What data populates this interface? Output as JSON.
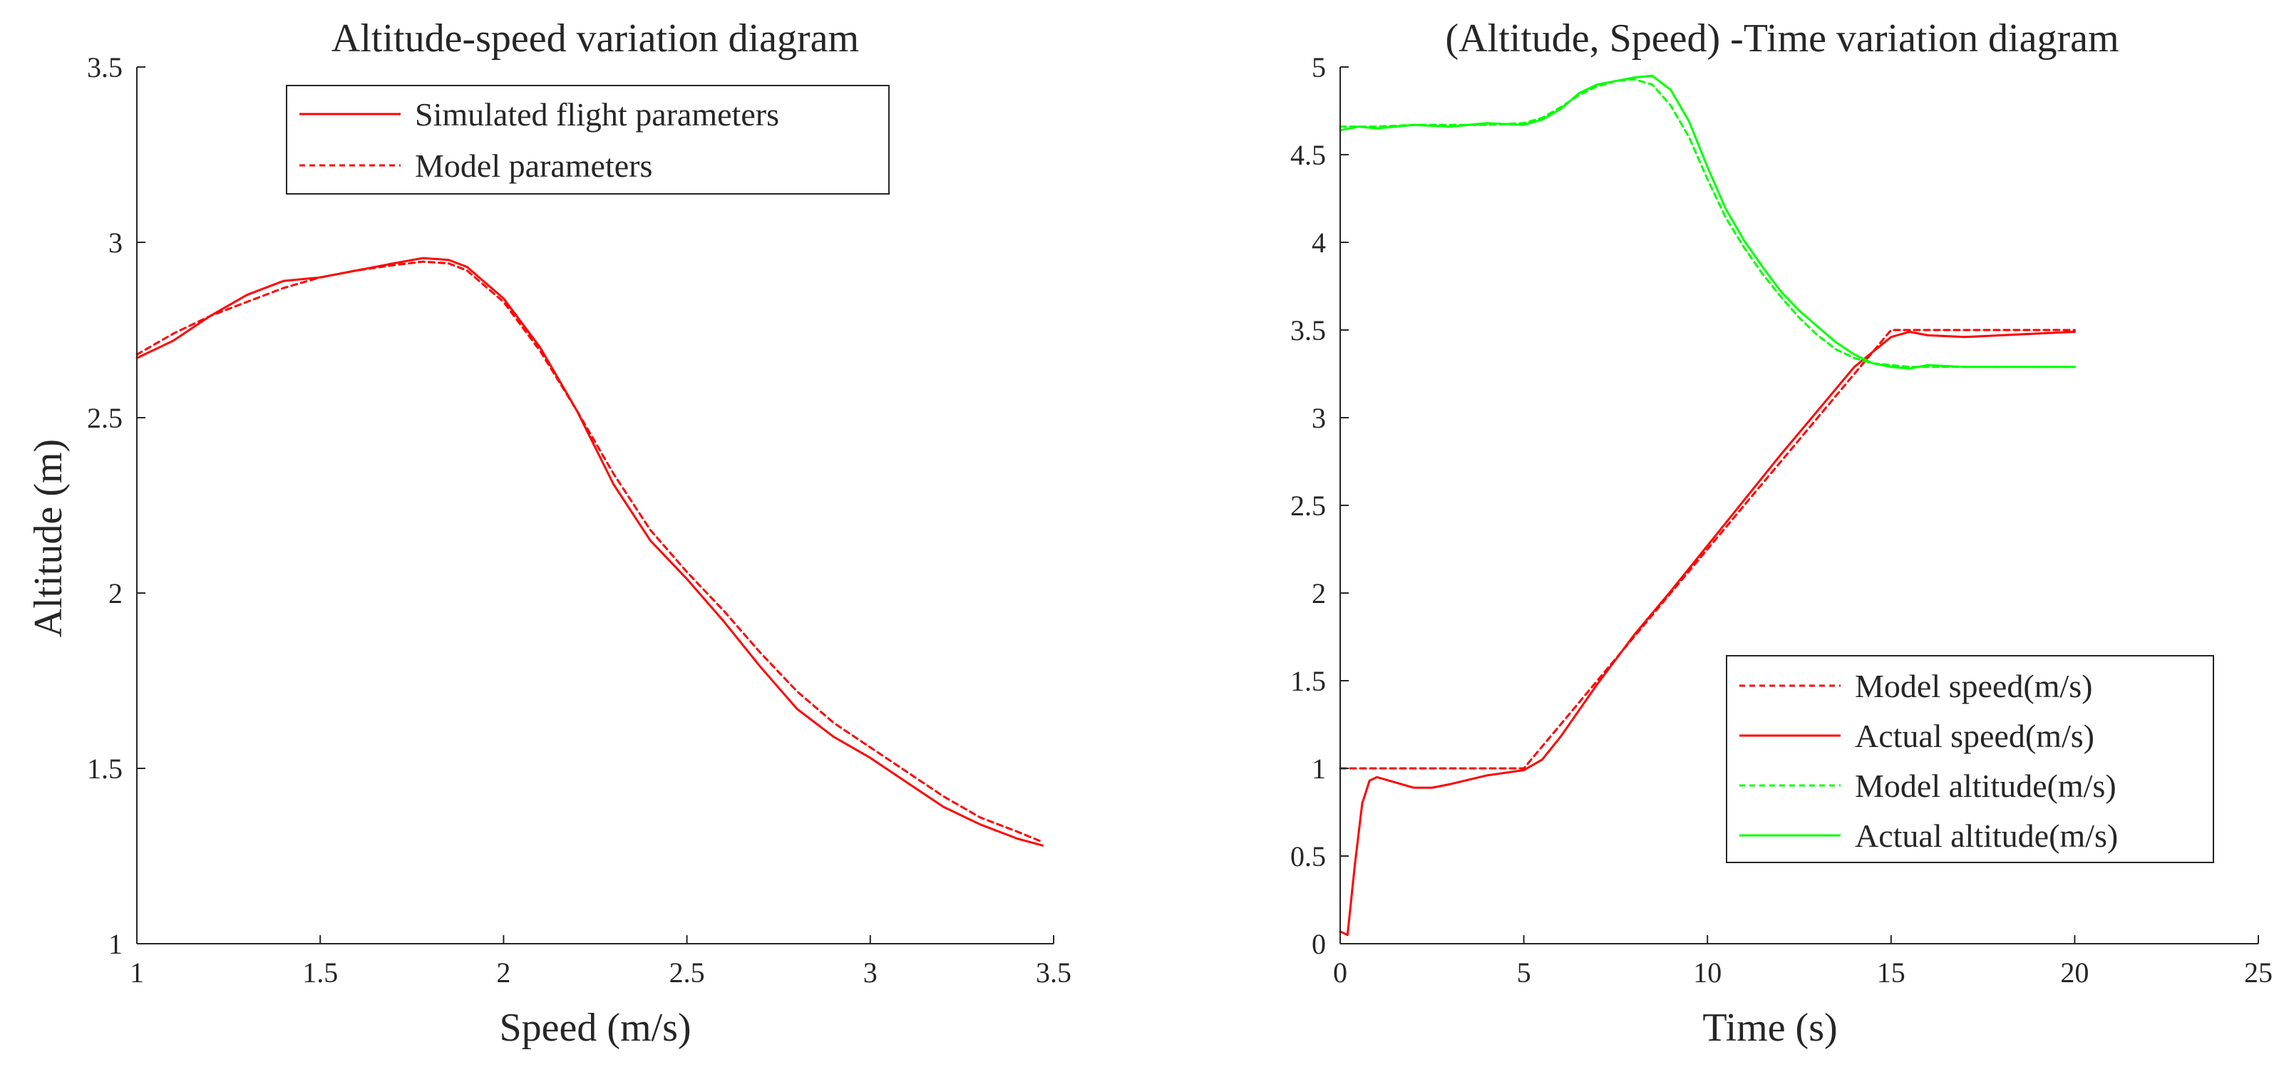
{
  "chart_data": [
    {
      "type": "line",
      "title": "Altitude-speed variation diagram",
      "xlabel": "Speed (m/s)",
      "ylabel": "Altitude (m)",
      "xlim": [
        1,
        3.5
      ],
      "ylim": [
        1,
        3.5
      ],
      "xticks": [
        1,
        1.5,
        2,
        2.5,
        3,
        3.5
      ],
      "xtick_labels": [
        "1",
        "1.5",
        "2",
        "2.5",
        "3",
        "3.5"
      ],
      "yticks": [
        1,
        1.5,
        2,
        2.5,
        3,
        3.5
      ],
      "ytick_labels": [
        "1",
        "1.5",
        "2",
        "2.5",
        "3",
        "3.5"
      ],
      "legend_position": "top-right",
      "series": [
        {
          "name": "Simulated flight parameters",
          "color": "#ff0000",
          "style": "solid",
          "x": [
            1.0,
            1.1,
            1.2,
            1.3,
            1.4,
            1.5,
            1.6,
            1.7,
            1.78,
            1.85,
            1.9,
            2.0,
            2.1,
            2.2,
            2.3,
            2.4,
            2.5,
            2.6,
            2.7,
            2.8,
            2.9,
            3.0,
            3.1,
            3.2,
            3.3,
            3.4,
            3.47
          ],
          "y": [
            2.67,
            2.72,
            2.79,
            2.85,
            2.89,
            2.9,
            2.92,
            2.94,
            2.955,
            2.95,
            2.93,
            2.84,
            2.7,
            2.52,
            2.31,
            2.15,
            2.04,
            1.92,
            1.79,
            1.67,
            1.59,
            1.53,
            1.46,
            1.39,
            1.34,
            1.3,
            1.28
          ]
        },
        {
          "name": "Model parameters",
          "color": "#ff0000",
          "style": "dashed",
          "x": [
            1.0,
            1.1,
            1.2,
            1.3,
            1.4,
            1.5,
            1.6,
            1.7,
            1.78,
            1.85,
            1.9,
            2.0,
            2.1,
            2.2,
            2.3,
            2.4,
            2.5,
            2.6,
            2.7,
            2.8,
            2.9,
            3.0,
            3.1,
            3.2,
            3.3,
            3.4,
            3.47
          ],
          "y": [
            2.68,
            2.74,
            2.79,
            2.83,
            2.87,
            2.9,
            2.92,
            2.935,
            2.945,
            2.94,
            2.92,
            2.83,
            2.69,
            2.52,
            2.34,
            2.18,
            2.06,
            1.95,
            1.83,
            1.72,
            1.63,
            1.56,
            1.49,
            1.42,
            1.36,
            1.32,
            1.29
          ]
        }
      ]
    },
    {
      "type": "line",
      "title": "(Altitude, Speed) -Time variation diagram",
      "xlabel": "Time (s)",
      "ylabel": "",
      "xlim": [
        0,
        25
      ],
      "ylim": [
        0,
        5
      ],
      "xticks": [
        0,
        5,
        10,
        15,
        20,
        25
      ],
      "xtick_labels": [
        "0",
        "5",
        "10",
        "15",
        "20",
        "25"
      ],
      "yticks": [
        0,
        0.5,
        1,
        1.5,
        2,
        2.5,
        3,
        3.5,
        4,
        4.5,
        5
      ],
      "ytick_labels": [
        "0",
        "0.5",
        "1",
        "1.5",
        "2",
        "2.5",
        "3",
        "3.5",
        "4",
        "4.5",
        "5"
      ],
      "legend_position": "bottom-right",
      "series": [
        {
          "name": "Model speed(m/s)",
          "color": "#ff0000",
          "style": "dashed",
          "x": [
            0,
            5,
            15,
            20
          ],
          "y": [
            1.0,
            1.0,
            3.5,
            3.5
          ]
        },
        {
          "name": "Actual speed(m/s)",
          "color": "#ff0000",
          "style": "solid",
          "x": [
            0,
            0.2,
            0.4,
            0.6,
            0.8,
            1.0,
            1.5,
            2.0,
            2.5,
            3.0,
            4.0,
            5.0,
            5.5,
            6.0,
            7.0,
            8.0,
            9.0,
            10.0,
            11.0,
            12.0,
            13.0,
            14.0,
            15.0,
            15.5,
            16.0,
            17.0,
            18.0,
            19.0,
            20.0
          ],
          "y": [
            0.07,
            0.05,
            0.45,
            0.8,
            0.93,
            0.95,
            0.92,
            0.89,
            0.89,
            0.91,
            0.96,
            0.99,
            1.05,
            1.18,
            1.48,
            1.76,
            2.01,
            2.27,
            2.53,
            2.79,
            3.04,
            3.29,
            3.46,
            3.49,
            3.47,
            3.46,
            3.47,
            3.48,
            3.49
          ]
        },
        {
          "name": "Model altitude(m/s)",
          "color": "#00ff00",
          "style": "dashed",
          "x": [
            0,
            1,
            2,
            3,
            4,
            5,
            5.5,
            6,
            6.5,
            7,
            7.5,
            8,
            8.5,
            9,
            9.5,
            10,
            10.5,
            11,
            11.5,
            12,
            12.5,
            13,
            13.5,
            14,
            14.5,
            15,
            15.5,
            16,
            17,
            18,
            19,
            20
          ],
          "y": [
            4.66,
            4.66,
            4.67,
            4.67,
            4.67,
            4.68,
            4.71,
            4.77,
            4.84,
            4.89,
            4.92,
            4.93,
            4.9,
            4.78,
            4.6,
            4.36,
            4.14,
            3.97,
            3.82,
            3.69,
            3.57,
            3.47,
            3.39,
            3.34,
            3.31,
            3.3,
            3.29,
            3.29,
            3.29,
            3.29,
            3.29,
            3.29
          ]
        },
        {
          "name": "Actual altitude(m/s)",
          "color": "#00ff00",
          "style": "solid",
          "x": [
            0,
            0.5,
            1,
            2,
            3,
            4,
            5,
            5.5,
            6,
            6.5,
            7,
            7.5,
            8,
            8.5,
            9,
            9.5,
            10,
            10.5,
            11,
            11.5,
            12,
            12.5,
            13,
            13.5,
            14,
            14.5,
            15,
            15.5,
            16,
            17,
            18,
            19,
            20
          ],
          "y": [
            4.64,
            4.66,
            4.65,
            4.67,
            4.66,
            4.68,
            4.67,
            4.7,
            4.76,
            4.85,
            4.9,
            4.92,
            4.94,
            4.95,
            4.87,
            4.69,
            4.43,
            4.19,
            4.01,
            3.86,
            3.72,
            3.61,
            3.52,
            3.43,
            3.36,
            3.31,
            3.29,
            3.28,
            3.3,
            3.29,
            3.29,
            3.29,
            3.29
          ]
        }
      ]
    }
  ]
}
